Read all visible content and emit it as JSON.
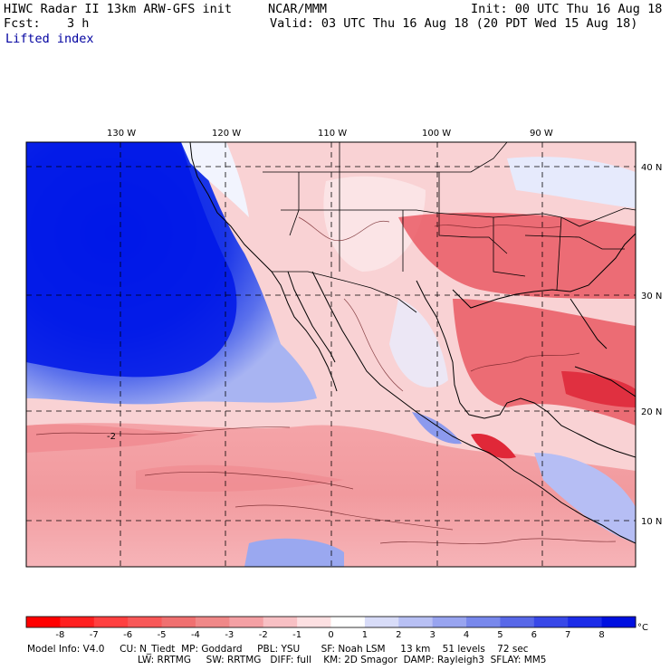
{
  "header": {
    "title": "HIWC Radar II 13km ARW-GFS init",
    "source": "NCAR/MMM",
    "init": "Init: 00 UTC Thu 16 Aug 18",
    "fcst_label": "Fcst:",
    "fcst_value": "3 h",
    "valid": "Valid: 03 UTC Thu 16 Aug 18 (20 PDT Wed 15 Aug 18)",
    "field": "Lifted index"
  },
  "map": {
    "lon_labels": [
      "130 W",
      "120 W",
      "110 W",
      "100 W",
      "90 W"
    ],
    "lat_labels": [
      "40 N",
      "30 N",
      "20 N",
      "10 N"
    ],
    "contour_label": "-2",
    "colors": {
      "strong_stable": "#0018e8",
      "stable": "#6a7ef0",
      "neutral": "#fde8ea",
      "unstable": "#f08a92",
      "strong_unstable": "#e83040"
    }
  },
  "colorbar": {
    "labels": [
      "-8",
      "-7",
      "-6",
      "-5",
      "-4",
      "-3",
      "-2",
      "-1",
      "0",
      "1",
      "2",
      "3",
      "4",
      "5",
      "6",
      "7",
      "8"
    ],
    "unit": "°C",
    "colors": [
      "#ff0000",
      "#ff2020",
      "#ff4040",
      "#f85858",
      "#f07070",
      "#f08888",
      "#f4a0a4",
      "#f8c0c4",
      "#fde0e2",
      "#ffffff",
      "#d8dcf8",
      "#b8c0f4",
      "#98a4f0",
      "#7888ec",
      "#5868e8",
      "#3848e8",
      "#1c2ce8",
      "#0010e0"
    ]
  },
  "model_info": {
    "line1": "Model Info: V4.0     CU: N_Tiedt  MP: Goddard     PBL: YSU       SF: Noah LSM     13 km    51 levels    72 sec",
    "line2": "LW: RRTMG     SW: RRTMG   DIFF: full    KM: 2D Smagor  DAMP: Rayleigh3  SFLAY: MM5"
  }
}
